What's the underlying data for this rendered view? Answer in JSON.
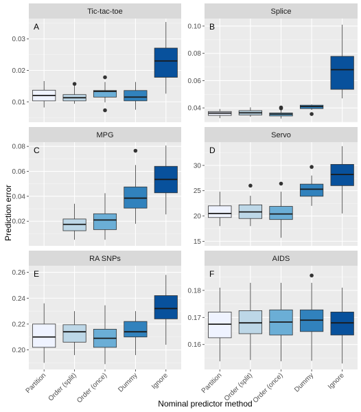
{
  "chart_data": {
    "type": "box",
    "ylabel": "Prediction error",
    "xlabel": "Nominal predictor method",
    "categories": [
      "Partition",
      "Order (split)",
      "Order (once)",
      "Dummy",
      "Ignore"
    ],
    "fill_colors": [
      "#eff3ff",
      "#bdd7e7",
      "#6baed6",
      "#3182bd",
      "#08519c"
    ],
    "panels": [
      {
        "letter": "A",
        "title": "Tic-tac-toe",
        "ylim": [
          0.0035,
          0.0365
        ],
        "yticks": [
          0.01,
          0.02,
          0.03
        ],
        "yticklabels": [
          "0.01",
          "0.02",
          "0.03"
        ],
        "boxes": [
          {
            "min": 0.0082,
            "q1": 0.0103,
            "median": 0.012,
            "q3": 0.0137,
            "max": 0.0166,
            "outliers": []
          },
          {
            "min": 0.0094,
            "q1": 0.0103,
            "median": 0.0113,
            "q3": 0.0123,
            "max": 0.0151,
            "outliers": [
              0.0157
            ]
          },
          {
            "min": 0.0098,
            "q1": 0.0115,
            "median": 0.0133,
            "q3": 0.0136,
            "max": 0.0163,
            "outliers": [
              0.0178,
              0.0073
            ]
          },
          {
            "min": 0.0075,
            "q1": 0.0103,
            "median": 0.0115,
            "q3": 0.0136,
            "max": 0.0163,
            "outliers": []
          },
          {
            "min": 0.0126,
            "q1": 0.0178,
            "median": 0.023,
            "q3": 0.0271,
            "max": 0.0354,
            "outliers": []
          }
        ]
      },
      {
        "letter": "B",
        "title": "Splice",
        "ylim": [
          0.0295,
          0.1055
        ],
        "yticks": [
          0.04,
          0.06,
          0.08,
          0.1
        ],
        "yticklabels": [
          "0.04",
          "0.06",
          "0.08",
          "0.10"
        ],
        "boxes": [
          {
            "min": 0.0325,
            "q1": 0.0345,
            "median": 0.0362,
            "q3": 0.0374,
            "max": 0.0392,
            "outliers": []
          },
          {
            "min": 0.0335,
            "q1": 0.0348,
            "median": 0.0364,
            "q3": 0.038,
            "max": 0.0404,
            "outliers": []
          },
          {
            "min": 0.0322,
            "q1": 0.0341,
            "median": 0.0354,
            "q3": 0.0363,
            "max": 0.0385,
            "outliers": [
              0.0397,
              0.0403
            ]
          },
          {
            "min": 0.0385,
            "q1": 0.0395,
            "median": 0.041,
            "q3": 0.042,
            "max": 0.0425,
            "outliers": [
              0.0355
            ]
          },
          {
            "min": 0.047,
            "q1": 0.0536,
            "median": 0.068,
            "q3": 0.0778,
            "max": 0.101,
            "outliers": []
          }
        ]
      },
      {
        "letter": "C",
        "title": "MPG",
        "ylim": [
          0.0003,
          0.0834
        ],
        "yticks": [
          0.02,
          0.04,
          0.06,
          0.08
        ],
        "yticklabels": [
          "0.02",
          "0.04",
          "0.06",
          "0.08"
        ],
        "boxes": [
          null,
          {
            "min": 0.0052,
            "q1": 0.0124,
            "median": 0.0175,
            "q3": 0.0218,
            "max": 0.034,
            "outliers": []
          },
          {
            "min": 0.0052,
            "q1": 0.0133,
            "median": 0.021,
            "q3": 0.026,
            "max": 0.0425,
            "outliers": []
          },
          {
            "min": 0.018,
            "q1": 0.0305,
            "median": 0.0385,
            "q3": 0.0475,
            "max": 0.065,
            "outliers": [
              0.0765
            ]
          },
          {
            "min": 0.0255,
            "q1": 0.0428,
            "median": 0.0535,
            "q3": 0.064,
            "max": 0.0807,
            "outliers": []
          }
        ]
      },
      {
        "letter": "D",
        "title": "Servo",
        "ylim": [
          14.1,
          34.6
        ],
        "yticks": [
          15,
          20,
          25,
          30
        ],
        "yticklabels": [
          "15",
          "20",
          "25",
          "30"
        ],
        "boxes": [
          {
            "min": 18.0,
            "q1": 19.7,
            "median": 20.5,
            "q3": 22.0,
            "max": 24.8,
            "outliers": []
          },
          {
            "min": 18.0,
            "q1": 19.5,
            "median": 20.8,
            "q3": 22.2,
            "max": 24.0,
            "outliers": [
              26.0
            ]
          },
          {
            "min": 15.7,
            "q1": 19.3,
            "median": 20.4,
            "q3": 21.9,
            "max": 24.8,
            "outliers": [
              26.4
            ]
          },
          {
            "min": 22.0,
            "q1": 23.9,
            "median": 25.3,
            "q3": 26.3,
            "max": 28.0,
            "outliers": [
              29.7
            ]
          },
          {
            "min": 20.5,
            "q1": 26.0,
            "median": 28.2,
            "q3": 30.2,
            "max": 33.8,
            "outliers": []
          }
        ]
      },
      {
        "letter": "E",
        "title": "RA SNPs",
        "ylim": [
          0.1849,
          0.2651
        ],
        "yticks": [
          0.2,
          0.22,
          0.24,
          0.26
        ],
        "yticklabels": [
          "0.20",
          "0.22",
          "0.24",
          "0.26"
        ],
        "boxes": [
          {
            "min": 0.19,
            "q1": 0.202,
            "median": 0.21,
            "q3": 0.22,
            "max": 0.236,
            "outliers": []
          },
          {
            "min": 0.196,
            "q1": 0.206,
            "median": 0.214,
            "q3": 0.2195,
            "max": 0.23,
            "outliers": []
          },
          {
            "min": 0.189,
            "q1": 0.202,
            "median": 0.209,
            "q3": 0.216,
            "max": 0.2345,
            "outliers": []
          },
          {
            "min": 0.196,
            "q1": 0.21,
            "median": 0.214,
            "q3": 0.222,
            "max": 0.23,
            "outliers": []
          },
          {
            "min": 0.204,
            "q1": 0.224,
            "median": 0.232,
            "q3": 0.242,
            "max": 0.258,
            "outliers": []
          }
        ]
      },
      {
        "letter": "F",
        "title": "AIDS",
        "ylim": [
          0.1508,
          0.1891
        ],
        "yticks": [
          0.16,
          0.17,
          0.18
        ],
        "yticklabels": [
          "0.16",
          "0.17",
          "0.18"
        ],
        "boxes": [
          {
            "min": 0.1538,
            "q1": 0.1625,
            "median": 0.1675,
            "q3": 0.172,
            "max": 0.181,
            "outliers": []
          },
          {
            "min": 0.1543,
            "q1": 0.164,
            "median": 0.168,
            "q3": 0.1725,
            "max": 0.1828,
            "outliers": []
          },
          {
            "min": 0.1538,
            "q1": 0.1635,
            "median": 0.1683,
            "q3": 0.1728,
            "max": 0.1828,
            "outliers": []
          },
          {
            "min": 0.154,
            "q1": 0.1648,
            "median": 0.169,
            "q3": 0.1728,
            "max": 0.1828,
            "outliers": [
              0.1855
            ]
          },
          {
            "min": 0.153,
            "q1": 0.1635,
            "median": 0.168,
            "q3": 0.172,
            "max": 0.181,
            "outliers": []
          }
        ]
      }
    ]
  }
}
